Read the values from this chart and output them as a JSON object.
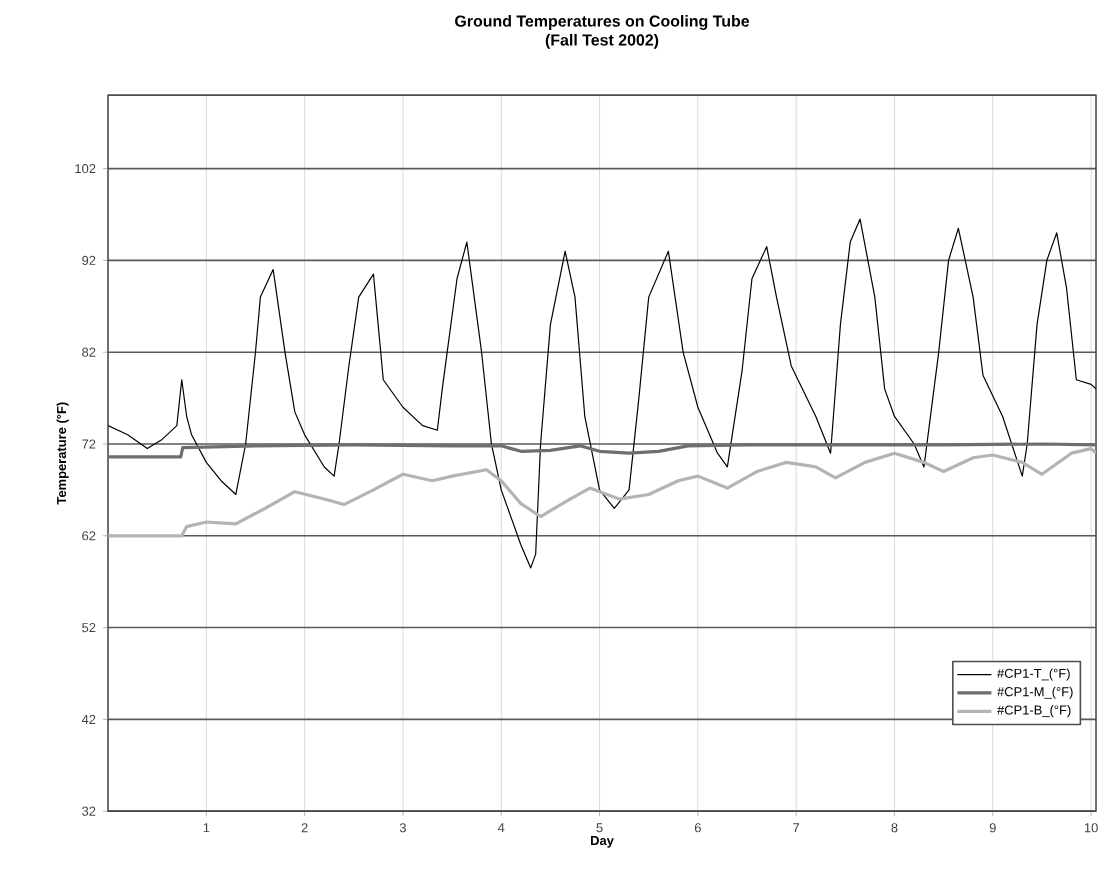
{
  "chart_data": {
    "type": "line",
    "title": "Ground Temperatures on Cooling Tube",
    "subtitle": "(Fall Test 2002)",
    "xlabel": "Day",
    "ylabel": "Temperature (°F)",
    "xlim": [
      0,
      10.05
    ],
    "xticks": [
      1,
      2,
      3,
      4,
      5,
      6,
      7,
      8,
      9,
      10
    ],
    "ylim": [
      32,
      110
    ],
    "yticks": [
      32,
      42,
      52,
      62,
      72,
      82,
      92,
      102
    ],
    "grid": true,
    "legend": "bottom right",
    "marker": "none",
    "line_style": "solid",
    "series": [
      {
        "name": "#CP1-T_(°F)",
        "color": "#000000",
        "x": [
          0,
          0.2,
          0.4,
          0.55,
          0.7,
          0.75,
          0.8,
          0.85,
          1.0,
          1.15,
          1.3,
          1.4,
          1.5,
          1.55,
          1.68,
          1.8,
          1.9,
          2.0,
          2.2,
          2.3,
          2.35,
          2.45,
          2.55,
          2.7,
          2.8,
          3.0,
          3.2,
          3.35,
          3.4,
          3.55,
          3.65,
          3.8,
          3.9,
          4.0,
          4.2,
          4.3,
          4.35,
          4.4,
          4.5,
          4.65,
          4.75,
          4.85,
          5.0,
          5.15,
          5.3,
          5.4,
          5.5,
          5.7,
          5.85,
          6.0,
          6.2,
          6.3,
          6.45,
          6.55,
          6.7,
          6.8,
          6.95,
          7.2,
          7.35,
          7.45,
          7.55,
          7.65,
          7.8,
          7.9,
          8.0,
          8.2,
          8.3,
          8.45,
          8.55,
          8.65,
          8.8,
          8.9,
          9.1,
          9.3,
          9.35,
          9.45,
          9.55,
          9.65,
          9.75,
          9.85,
          10.0,
          10.05
        ],
        "values": [
          74,
          73,
          71.5,
          72.5,
          74,
          79,
          75,
          73,
          70,
          68,
          66.5,
          72,
          82,
          88,
          91,
          82,
          75.5,
          73,
          69.5,
          68.5,
          72,
          80.5,
          88,
          90.5,
          79,
          76,
          74,
          73.5,
          78,
          90,
          94,
          82,
          72,
          67,
          61,
          58.5,
          60,
          72,
          85,
          93,
          88,
          75,
          67,
          65,
          67,
          77,
          88,
          93,
          82,
          76,
          71,
          69.5,
          80,
          90,
          93.5,
          88,
          80.5,
          75,
          71,
          85,
          94,
          96.5,
          88,
          78,
          75,
          72,
          69.5,
          82,
          92,
          95.5,
          88,
          79.5,
          75,
          68.5,
          72,
          85,
          92,
          95,
          89,
          79,
          78.5,
          78
        ]
      },
      {
        "name": "#CP1-M_(°F)",
        "color": "#6e6e6e",
        "x": [
          0,
          0.74,
          0.76,
          1.5,
          2.5,
          3.5,
          4.0,
          4.2,
          4.5,
          4.8,
          5.0,
          5.3,
          5.6,
          5.9,
          6.5,
          7.5,
          8.5,
          9.5,
          10.05
        ],
        "values": [
          70.6,
          70.6,
          71.6,
          71.8,
          71.9,
          71.8,
          71.8,
          71.2,
          71.3,
          71.8,
          71.2,
          71.0,
          71.2,
          71.8,
          71.9,
          71.9,
          71.9,
          72,
          71.9
        ]
      },
      {
        "name": "#CP1-B_(°F)",
        "color": "#b4b4b4",
        "x": [
          0,
          0.75,
          0.8,
          1.0,
          1.3,
          1.6,
          1.9,
          2.2,
          2.4,
          2.7,
          3.0,
          3.3,
          3.5,
          3.85,
          4.0,
          4.2,
          4.4,
          4.7,
          4.9,
          5.2,
          5.5,
          5.8,
          6.0,
          6.3,
          6.6,
          6.9,
          7.2,
          7.4,
          7.7,
          8.0,
          8.3,
          8.5,
          8.8,
          9.0,
          9.3,
          9.5,
          9.8,
          10.0,
          10.05
        ],
        "values": [
          62,
          62,
          63,
          63.5,
          63.3,
          65,
          66.8,
          66,
          65.4,
          67,
          68.7,
          68,
          68.5,
          69.2,
          68,
          65.5,
          64.1,
          66,
          67.2,
          66,
          66.5,
          68,
          68.5,
          67.2,
          69,
          70,
          69.5,
          68.3,
          70,
          71,
          70,
          69,
          70.5,
          70.8,
          70,
          68.7,
          71,
          71.5,
          71
        ]
      }
    ]
  }
}
